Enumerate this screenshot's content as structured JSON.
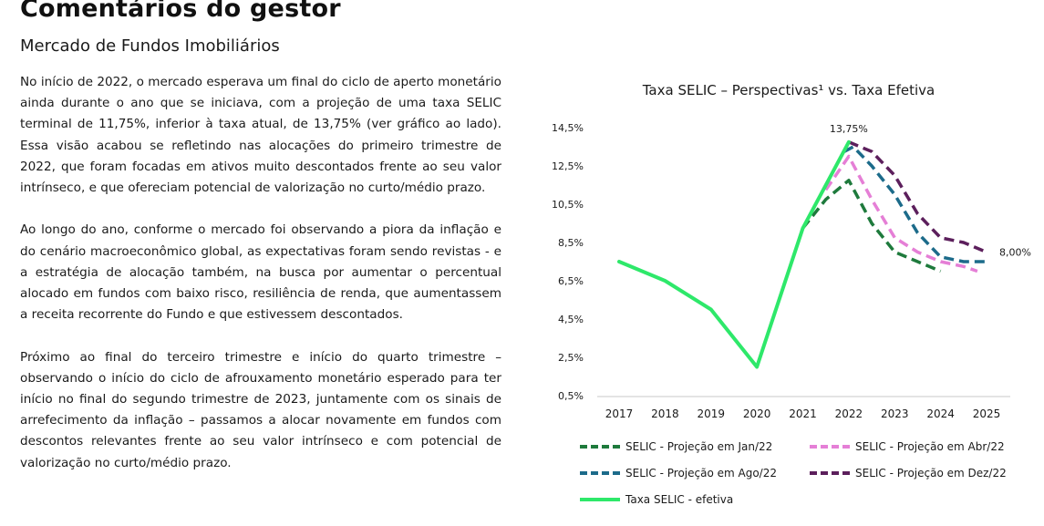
{
  "page": {
    "title": "Comentários do gestor",
    "section": "Mercado de Fundos Imobiliários",
    "paragraphs": [
      "No início de 2022, o mercado esperava um final do ciclo de aperto monetário ainda durante o ano que se iniciava, com a projeção de uma taxa SELIC terminal de 11,75%, inferior à taxa atual, de 13,75% (ver gráfico ao lado). Essa visão acabou se refletindo nas alocações do primeiro trimestre de 2022, que foram focadas em ativos muito descontados frente ao seu valor intrínseco, e que ofereciam potencial de valorização no curto/médio prazo.",
      "Ao longo do ano, conforme o mercado foi observando a piora da inflação e do cenário macroeconômico global, as expectativas foram sendo revistas - e a estratégia de alocação também, na busca por aumentar o percentual alocado em fundos com baixo risco, resiliência de renda, que aumentassem a receita recorrente do Fundo e que estivessem descontados.",
      "Próximo ao final do terceiro trimestre e início do quarto trimestre – observando o início do ciclo de afrouxamento monetário esperado para ter início no final do segundo trimestre de 2023, juntamente com os sinais de arrefecimento da inflação – passamos a alocar novamente em fundos com descontos relevantes frente ao seu valor intrínseco e com potencial de valorização no curto/médio prazo."
    ]
  },
  "chart_data": {
    "type": "line",
    "title": "Taxa SELIC – Perspectivas¹ vs. Taxa Efetiva",
    "xlabel": "",
    "ylabel": "",
    "x_ticks": [
      "2017",
      "2018",
      "2019",
      "2020",
      "2021",
      "2022",
      "2023",
      "2024",
      "2025"
    ],
    "y_ticks": [
      "0,5%",
      "2,5%",
      "4,5%",
      "6,5%",
      "8,5%",
      "10,5%",
      "12,5%",
      "14,5%"
    ],
    "ylim": [
      0.5,
      14.5
    ],
    "xlim": [
      2017,
      2025
    ],
    "grid": false,
    "legend_position": "bottom",
    "series": [
      {
        "name": "SELIC - Projeção em Jan/22",
        "color": "#1e7a3c",
        "dash": "dashed",
        "points": [
          [
            2021.0,
            9.25
          ],
          [
            2021.5,
            10.75
          ],
          [
            2022.0,
            11.75
          ],
          [
            2022.5,
            9.5
          ],
          [
            2023.0,
            8.0
          ],
          [
            2023.5,
            7.5
          ],
          [
            2024.0,
            7.0
          ]
        ]
      },
      {
        "name": "SELIC - Projeção em Abr/22",
        "color": "#e57fd6",
        "dash": "dashed",
        "points": [
          [
            2021.5,
            11.25
          ],
          [
            2022.0,
            13.0
          ],
          [
            2022.5,
            10.75
          ],
          [
            2023.0,
            8.75
          ],
          [
            2023.5,
            8.0
          ],
          [
            2024.0,
            7.5
          ],
          [
            2024.5,
            7.25
          ],
          [
            2024.8,
            7.0
          ]
        ]
      },
      {
        "name": "SELIC - Projeção em Ago/22",
        "color": "#1c6b8a",
        "dash": "dashed",
        "points": [
          [
            2021.9,
            13.25
          ],
          [
            2022.1,
            13.5
          ],
          [
            2022.5,
            12.5
          ],
          [
            2023.0,
            11.0
          ],
          [
            2023.5,
            9.0
          ],
          [
            2024.0,
            7.75
          ],
          [
            2024.5,
            7.5
          ],
          [
            2025.0,
            7.5
          ]
        ]
      },
      {
        "name": "SELIC - Projeção em Dez/22",
        "color": "#5c1f5c",
        "dash": "dashed",
        "points": [
          [
            2022.0,
            13.75
          ],
          [
            2022.5,
            13.25
          ],
          [
            2023.0,
            12.0
          ],
          [
            2023.5,
            10.0
          ],
          [
            2024.0,
            8.75
          ],
          [
            2024.5,
            8.5
          ],
          [
            2025.0,
            8.0
          ]
        ]
      },
      {
        "name": "Taxa SELIC - efetiva",
        "color": "#2ee86a",
        "dash": "solid",
        "points": [
          [
            2017.0,
            7.5
          ],
          [
            2018.0,
            6.5
          ],
          [
            2019.0,
            5.0
          ],
          [
            2020.0,
            2.0
          ],
          [
            2021.0,
            9.25
          ],
          [
            2022.0,
            13.75
          ]
        ]
      }
    ],
    "annotations": [
      {
        "text": "13,75%",
        "x": 2022.0,
        "y": 13.75,
        "anchor": "above"
      },
      {
        "text": "8,00%",
        "x": 2025.0,
        "y": 8.0,
        "anchor": "right"
      }
    ]
  }
}
